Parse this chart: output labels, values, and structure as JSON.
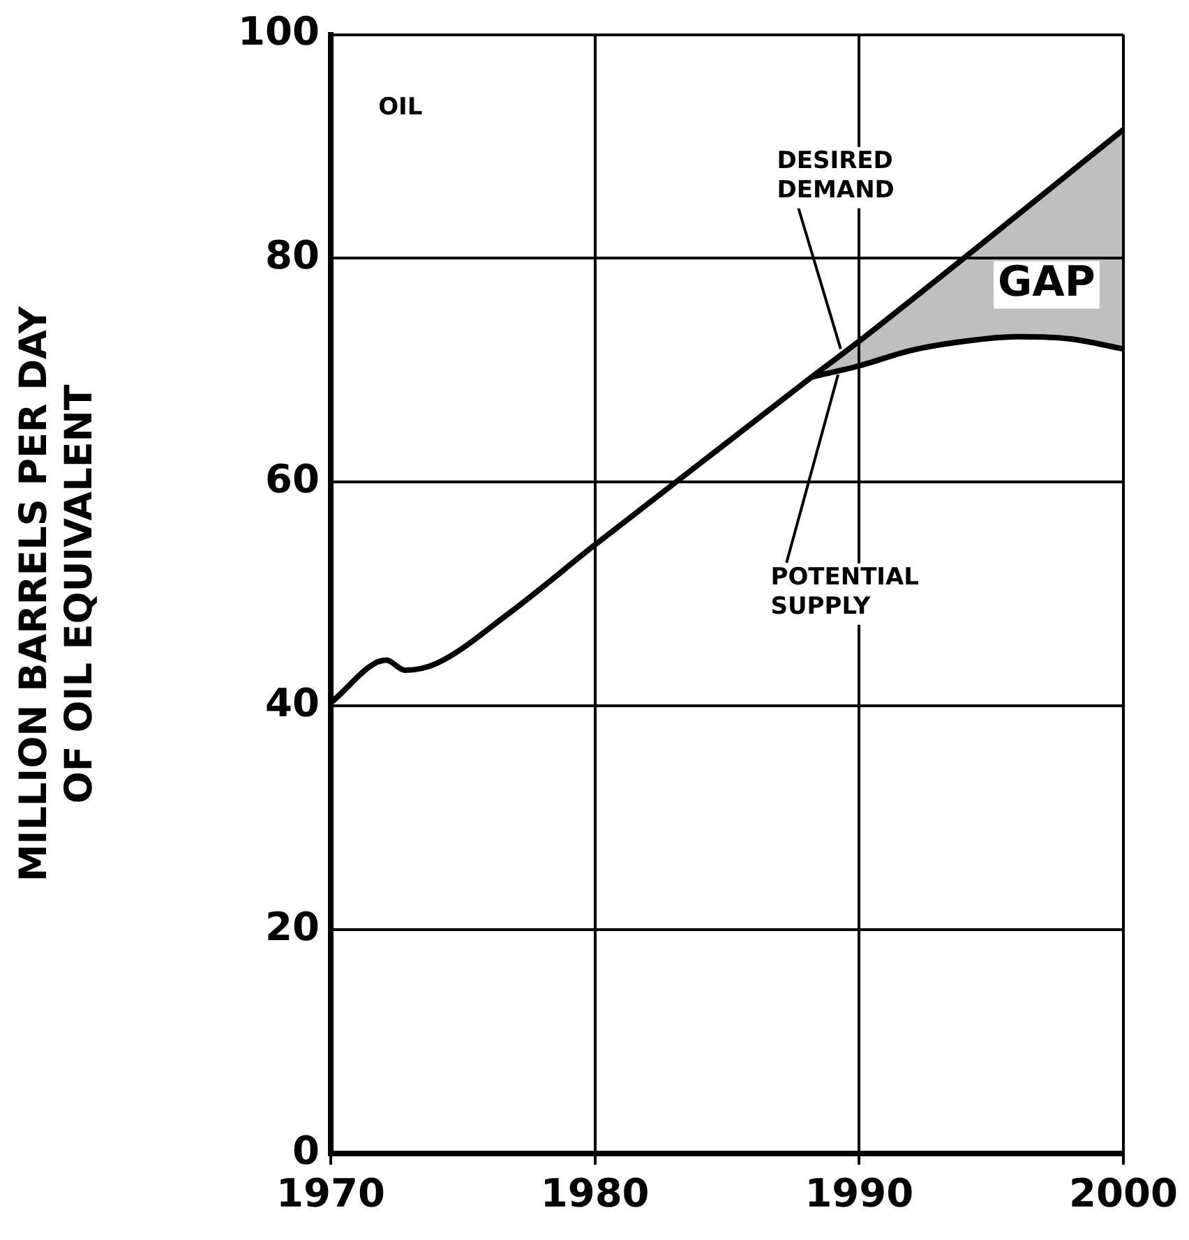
{
  "chart_data": {
    "type": "line",
    "xlabel": null,
    "ylabel": "MILLION BARRELS PER DAY\nOF OIL EQUIVALENT",
    "xlim": [
      1970,
      2000
    ],
    "xticks": [
      1970,
      1980,
      1990,
      2000
    ],
    "ylim": [
      0,
      100
    ],
    "yticks": [
      0,
      20,
      40,
      60,
      80,
      100
    ],
    "grid": true,
    "legend": false,
    "marker": "none",
    "line_style": "solid",
    "series": [
      {
        "color": "#000000",
        "x": [
          1970,
          1972.1,
          1972.8,
          1974,
          1976.7,
          1980,
          1988.2,
          1990,
          2000
        ],
        "values": [
          40.3,
          44.1,
          43.2,
          43.8,
          48.2,
          54.4,
          69.4,
          72.6,
          91.5
        ]
      },
      {
        "color": "#000000",
        "x": [
          1988.2,
          1990,
          1992,
          1994,
          1996,
          1998,
          2000
        ],
        "values": [
          69.4,
          70.4,
          71.8,
          72.6,
          73,
          72.8,
          71.9
        ],
        "lower": [
          69.4,
          70.4,
          71.8,
          72.6,
          73,
          72.8,
          71.9
        ],
        "upper": [
          69.4,
          72.6,
          76.4,
          80.2,
          84,
          87.7,
          91.5
        ]
      }
    ],
    "annotations": [
      "OIL",
      {
        "text": "DESIRED\nDEMAND",
        "x": 1989.3,
        "y": 71.9
      },
      {
        "text": "POTENTIAL\nSUPPLY",
        "x": 1989.2,
        "y": 69.6
      },
      "GAP"
    ]
  }
}
